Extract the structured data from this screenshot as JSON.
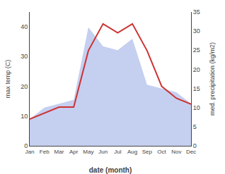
{
  "chart_data": {
    "type": "line",
    "xlabel": "date (month)",
    "ylabel": "max temp (C)",
    "y2label": "med. precipitation (kg/m2)",
    "categories": [
      "Jan",
      "Feb",
      "Mar",
      "Apr",
      "May",
      "Jun",
      "Jul",
      "Aug",
      "Sep",
      "Oct",
      "Nov",
      "Dec"
    ],
    "series": [
      {
        "type": "area",
        "axis": "y2",
        "color": "#c5cff0",
        "values": [
          7,
          10,
          11,
          12,
          31,
          26,
          25,
          28,
          16,
          15,
          14,
          11
        ]
      },
      {
        "type": "line",
        "color": "#cc3333",
        "values": [
          9,
          11,
          13,
          13,
          32,
          41,
          38,
          41,
          32,
          20,
          16,
          14
        ]
      }
    ],
    "ylim": [
      0,
      45
    ],
    "yticks": [
      0,
      10,
      20,
      30,
      40
    ],
    "y2lim": [
      0,
      35
    ],
    "y2ticks": [
      0,
      5,
      10,
      15,
      20,
      25,
      30,
      35
    ],
    "grid": false
  }
}
